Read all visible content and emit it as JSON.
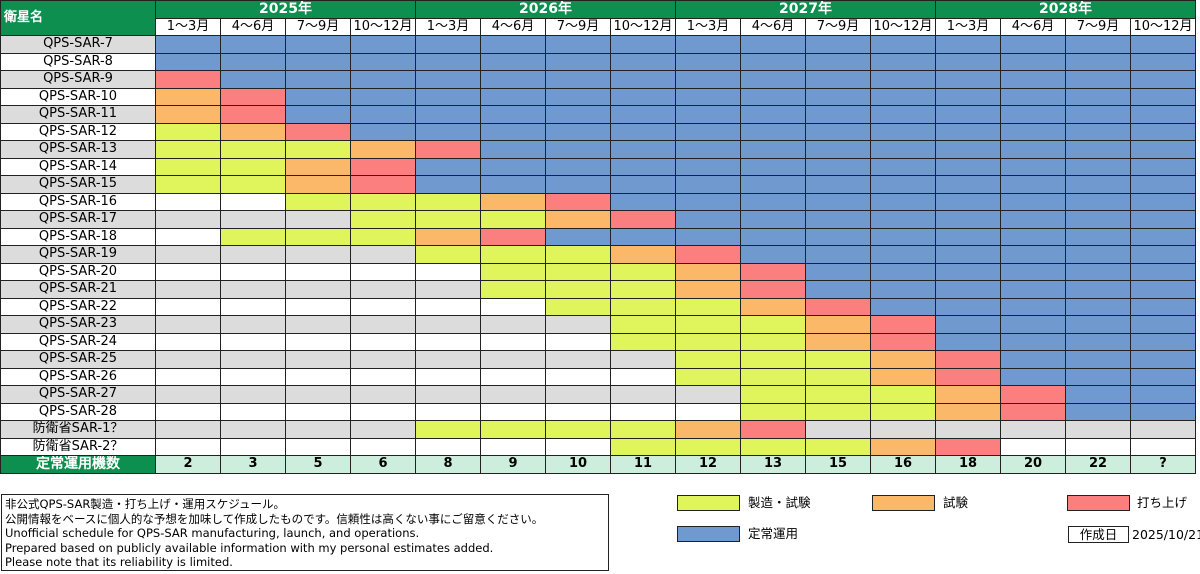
{
  "colors": {
    "build": "#dff55b",
    "test": "#fcb869",
    "launch": "#fc7f7f",
    "ops": "#6f99cf",
    "header_green": "#0d8f4f",
    "count_bg": "#cdeedd"
  },
  "chart_data": {
    "type": "table",
    "header_label": "衛星名",
    "years": [
      "2025年",
      "2026年",
      "2027年",
      "2028年"
    ],
    "quarters": [
      "1～3月",
      "4～6月",
      "7～9月",
      "10～12月"
    ],
    "rows": [
      {
        "name": "QPS-SAR-7",
        "cells": "OOOOOOOOOOOOOOOO"
      },
      {
        "name": "QPS-SAR-8",
        "cells": "OOOOOOOOOOOOOOOO"
      },
      {
        "name": "QPS-SAR-9",
        "cells": "LOOOOOOOOOOOOOOO"
      },
      {
        "name": "QPS-SAR-10",
        "cells": "TLOOOOOOOOOOOOOO"
      },
      {
        "name": "QPS-SAR-11",
        "cells": "TLOOOOOOOOOOOOOO"
      },
      {
        "name": "QPS-SAR-12",
        "cells": "BTLOOOOOOOOOOOOO"
      },
      {
        "name": "QPS-SAR-13",
        "cells": "BBBTLOOOOOOOOOOO"
      },
      {
        "name": "QPS-SAR-14",
        "cells": "BBTLOOOOOOOOOOOO"
      },
      {
        "name": "QPS-SAR-15",
        "cells": "BBTLOOOOOOOOOOOO"
      },
      {
        "name": "QPS-SAR-16",
        "cells": "--BBBTLOOOOOOOOO"
      },
      {
        "name": "QPS-SAR-17",
        "cells": "---BBBTLOOOOOOOO"
      },
      {
        "name": "QPS-SAR-18",
        "cells": "-BBBTLOOOOOOOOOO"
      },
      {
        "name": "QPS-SAR-19",
        "cells": "----BBBTLOOOOOOO"
      },
      {
        "name": "QPS-SAR-20",
        "cells": "-----BBBTLOOOOOO"
      },
      {
        "name": "QPS-SAR-21",
        "cells": "-----BBBTLOOOOOO"
      },
      {
        "name": "QPS-SAR-22",
        "cells": "------BBBTLOOOOO"
      },
      {
        "name": "QPS-SAR-23",
        "cells": "-------BBBTLOOOO"
      },
      {
        "name": "QPS-SAR-24",
        "cells": "-------BBBTLOOOO"
      },
      {
        "name": "QPS-SAR-25",
        "cells": "--------BBBTLOOO"
      },
      {
        "name": "QPS-SAR-26",
        "cells": "--------BBBTLOOO"
      },
      {
        "name": "QPS-SAR-27",
        "cells": "---------BBBTLOO"
      },
      {
        "name": "QPS-SAR-28",
        "cells": "---------BBBTLOO"
      },
      {
        "name": "防衛省SAR-1？",
        "cells": "----BBBBTL------"
      },
      {
        "name": "防衛省SAR-2？",
        "cells": "-------BBBBTL---"
      }
    ],
    "count_label": "定常運用機数",
    "counts": [
      "2",
      "3",
      "5",
      "6",
      "8",
      "9",
      "10",
      "11",
      "12",
      "13",
      "15",
      "16",
      "18",
      "20",
      "22",
      "?"
    ]
  },
  "note": {
    "lines": [
      "非公式QPS-SAR製造・打ち上げ・運用スケジュール。",
      "公開情報をベースに個人的な予想を加味して作成したものです。信頼性は高くない事にご留意ください。",
      "Unofficial schedule for QPS-SAR manufacturing, launch, and operations.",
      "Prepared based on publicly available information with my personal estimates added.",
      "Please note that its reliability is limited."
    ]
  },
  "legend": {
    "build": "製造・試験",
    "test": "試験",
    "launch": "打ち上げ",
    "ops": "定常運用"
  },
  "created": {
    "label": "作成日",
    "date": "2025/10/21"
  }
}
